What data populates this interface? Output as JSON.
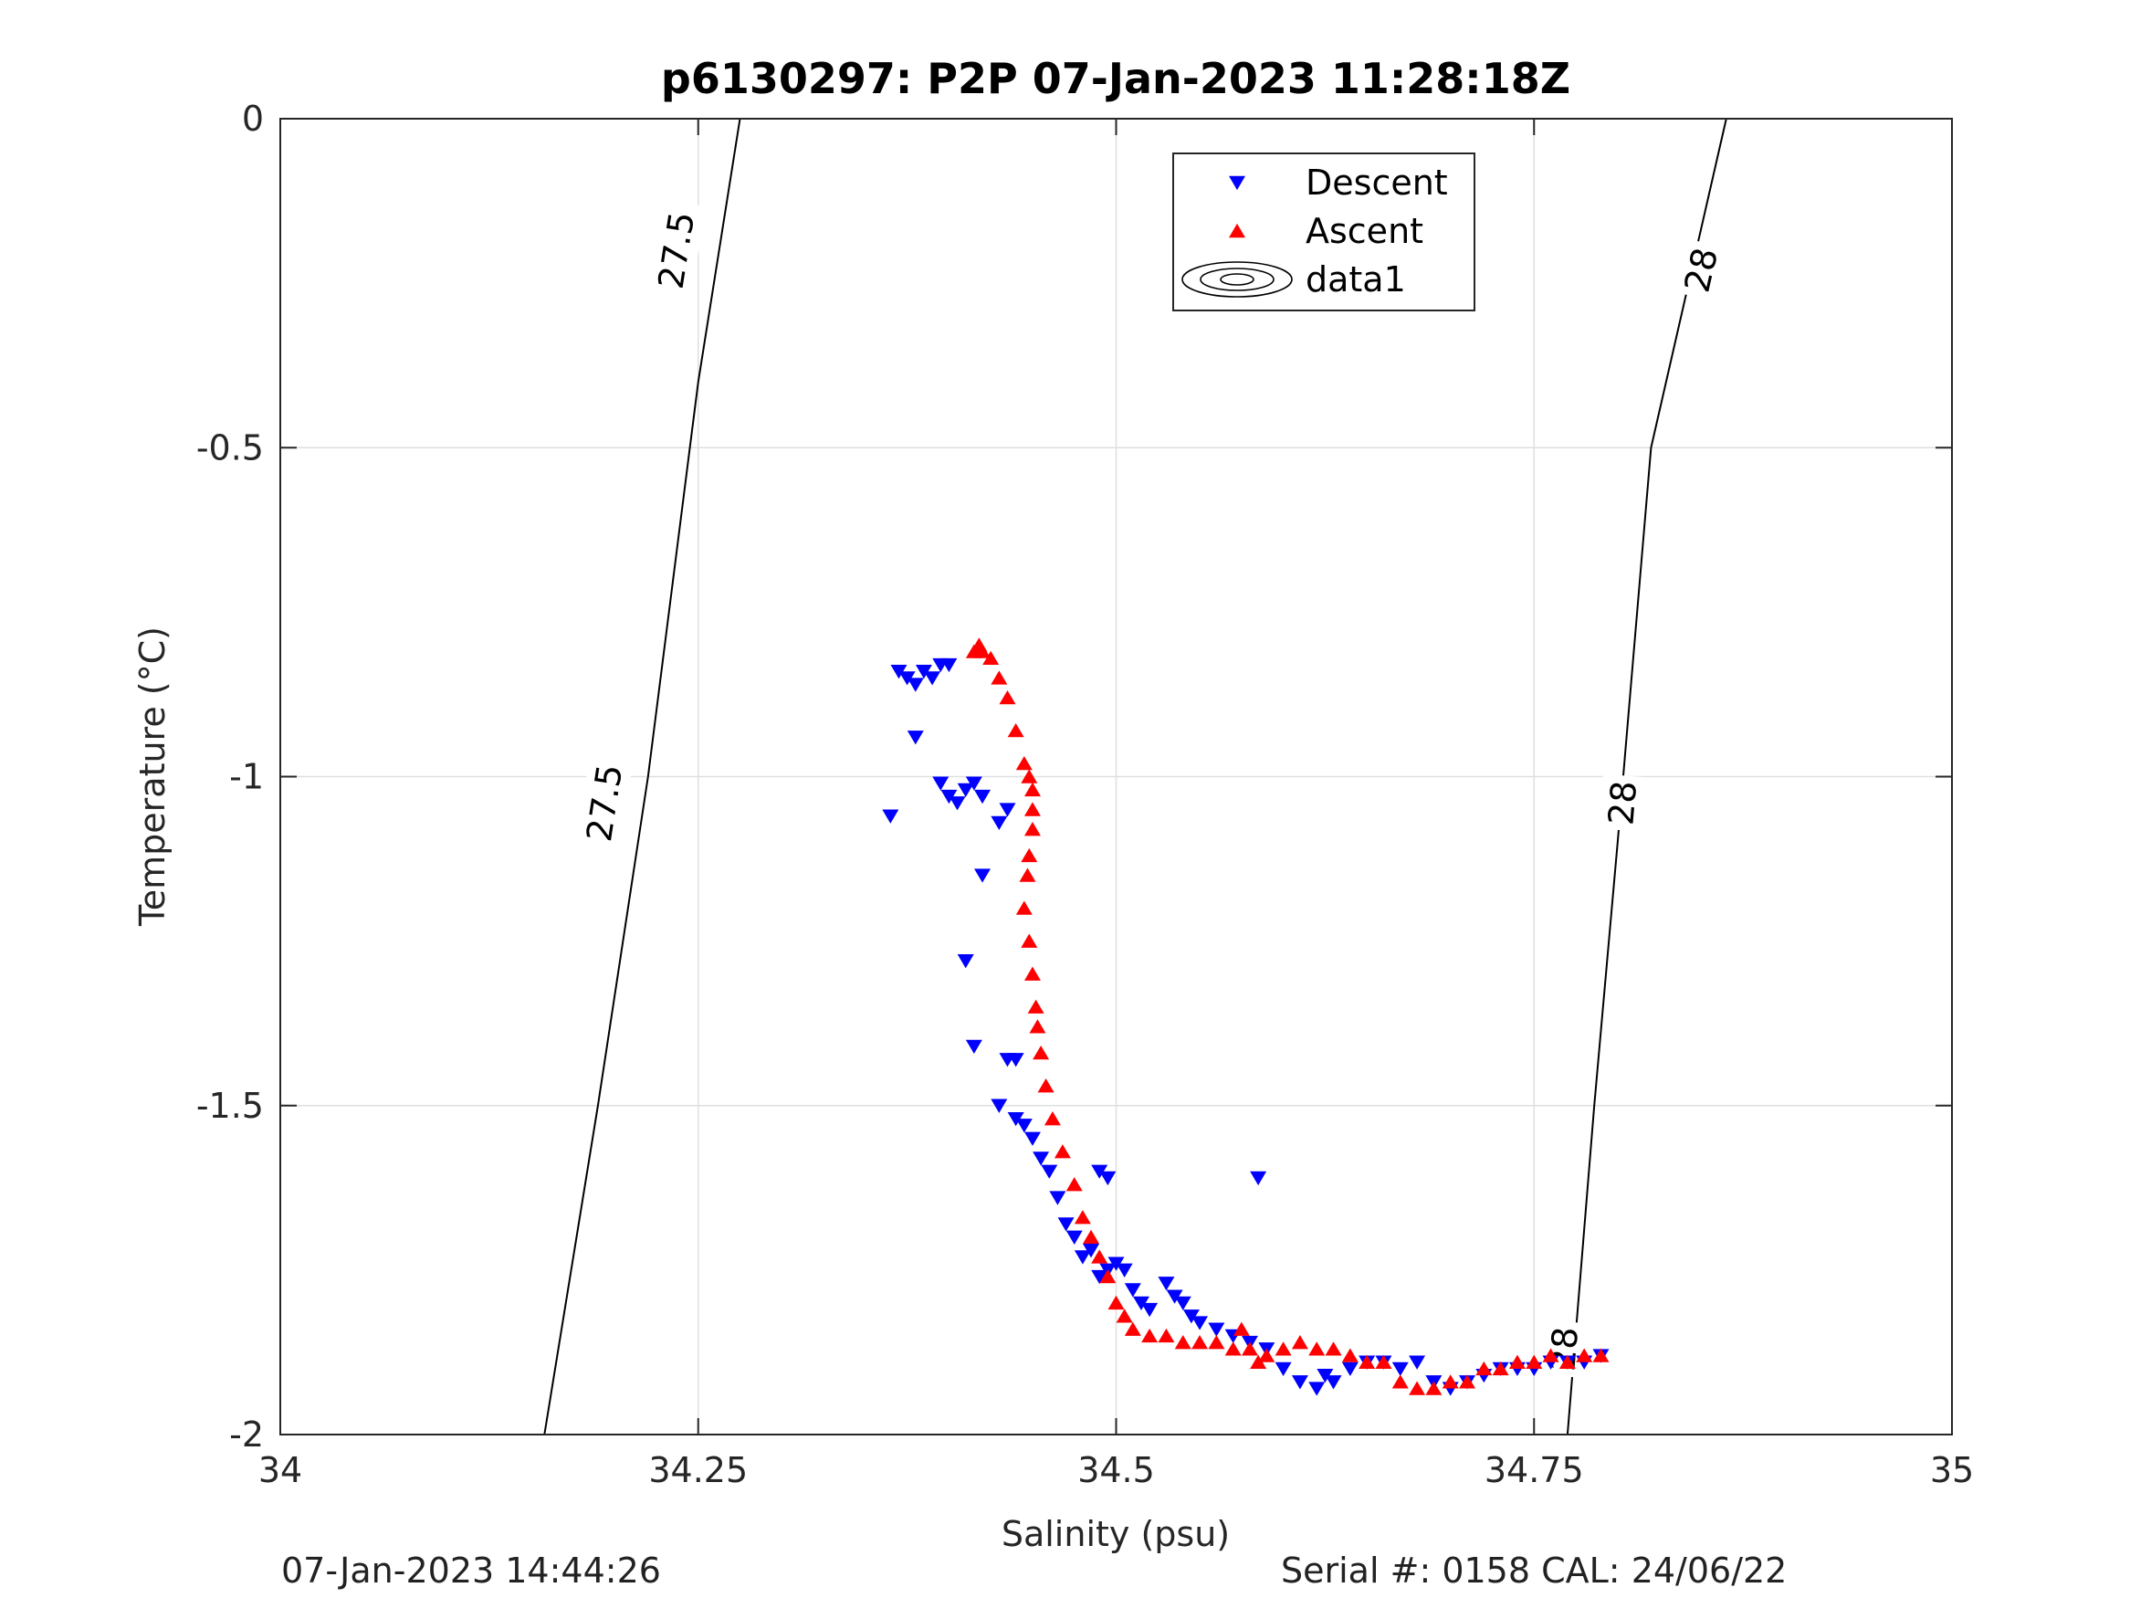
{
  "chart_data": {
    "type": "scatter",
    "title": "p6130297: P2P 07-Jan-2023 11:28:18Z",
    "xlabel": "Salinity (psu)",
    "ylabel": "Temperature (°C)",
    "xlim": [
      34,
      35
    ],
    "ylim": [
      -2,
      0
    ],
    "xticks": [
      34,
      34.25,
      34.5,
      34.75,
      35
    ],
    "xtick_labels": [
      "34",
      "34.25",
      "34.5",
      "34.75",
      "35"
    ],
    "yticks": [
      0,
      -0.5,
      -1,
      -1.5,
      -2
    ],
    "ytick_labels": [
      "0",
      "-0.5",
      "-1",
      "-1.5",
      "-2"
    ],
    "grid": true,
    "legend_position": "top-right",
    "legend": [
      {
        "label": "Descent",
        "marker": "triangle-down",
        "color": "#0000ff"
      },
      {
        "label": "Ascent",
        "marker": "triangle-up",
        "color": "#ff0000"
      },
      {
        "label": "data1",
        "marker": "contour",
        "color": "#000000"
      }
    ],
    "contours": [
      {
        "label": "27.5",
        "points": [
          [
            34.158,
            -2.0
          ],
          [
            34.19,
            -1.5
          ],
          [
            34.22,
            -1.0
          ],
          [
            34.245,
            -0.5
          ],
          [
            34.25,
            -0.4
          ],
          [
            34.275,
            0.0
          ]
        ],
        "label_positions": [
          [
            34.194,
            -1.04
          ],
          [
            34.237,
            -0.2
          ]
        ]
      },
      {
        "label": "28",
        "points": [
          [
            34.77,
            -2.0
          ],
          [
            34.786,
            -1.5
          ],
          [
            34.8,
            -1.1
          ],
          [
            34.82,
            -0.5
          ],
          [
            34.865,
            0.0
          ]
        ],
        "label_positions": [
          [
            34.768,
            -1.87
          ],
          [
            34.803,
            -1.04
          ],
          [
            34.85,
            -0.23
          ]
        ]
      }
    ],
    "series": [
      {
        "name": "Descent",
        "marker": "triangle-down",
        "color": "#0000ff",
        "points": [
          [
            34.365,
            -1.06
          ],
          [
            34.37,
            -0.84
          ],
          [
            34.375,
            -0.85
          ],
          [
            34.38,
            -0.86
          ],
          [
            34.385,
            -0.84
          ],
          [
            34.39,
            -0.85
          ],
          [
            34.395,
            -0.83
          ],
          [
            34.4,
            -0.83
          ],
          [
            34.38,
            -0.94
          ],
          [
            34.395,
            -1.01
          ],
          [
            34.4,
            -1.03
          ],
          [
            34.405,
            -1.04
          ],
          [
            34.41,
            -1.02
          ],
          [
            34.415,
            -1.01
          ],
          [
            34.42,
            -1.03
          ],
          [
            34.43,
            -1.07
          ],
          [
            34.435,
            -1.05
          ],
          [
            34.42,
            -1.15
          ],
          [
            34.41,
            -1.28
          ],
          [
            34.415,
            -1.41
          ],
          [
            34.435,
            -1.43
          ],
          [
            34.44,
            -1.43
          ],
          [
            34.43,
            -1.5
          ],
          [
            34.44,
            -1.52
          ],
          [
            34.445,
            -1.53
          ],
          [
            34.45,
            -1.55
          ],
          [
            34.455,
            -1.58
          ],
          [
            34.46,
            -1.6
          ],
          [
            34.465,
            -1.64
          ],
          [
            34.47,
            -1.68
          ],
          [
            34.475,
            -1.7
          ],
          [
            34.48,
            -1.73
          ],
          [
            34.485,
            -1.72
          ],
          [
            34.49,
            -1.76
          ],
          [
            34.495,
            -1.75
          ],
          [
            34.5,
            -1.74
          ],
          [
            34.505,
            -1.75
          ],
          [
            34.51,
            -1.78
          ],
          [
            34.515,
            -1.8
          ],
          [
            34.52,
            -1.81
          ],
          [
            34.53,
            -1.77
          ],
          [
            34.535,
            -1.79
          ],
          [
            34.54,
            -1.8
          ],
          [
            34.545,
            -1.82
          ],
          [
            34.55,
            -1.83
          ],
          [
            34.56,
            -1.84
          ],
          [
            34.57,
            -1.85
          ],
          [
            34.58,
            -1.86
          ],
          [
            34.59,
            -1.87
          ],
          [
            34.6,
            -1.9
          ],
          [
            34.61,
            -1.92
          ],
          [
            34.62,
            -1.93
          ],
          [
            34.625,
            -1.91
          ],
          [
            34.63,
            -1.92
          ],
          [
            34.64,
            -1.9
          ],
          [
            34.65,
            -1.89
          ],
          [
            34.66,
            -1.89
          ],
          [
            34.67,
            -1.9
          ],
          [
            34.68,
            -1.89
          ],
          [
            34.69,
            -1.92
          ],
          [
            34.7,
            -1.93
          ],
          [
            34.71,
            -1.92
          ],
          [
            34.72,
            -1.91
          ],
          [
            34.73,
            -1.9
          ],
          [
            34.74,
            -1.9
          ],
          [
            34.75,
            -1.9
          ],
          [
            34.76,
            -1.89
          ],
          [
            34.77,
            -1.89
          ],
          [
            34.78,
            -1.89
          ],
          [
            34.79,
            -1.88
          ],
          [
            34.49,
            -1.6
          ],
          [
            34.495,
            -1.61
          ],
          [
            34.585,
            -1.61
          ]
        ]
      },
      {
        "name": "Ascent",
        "marker": "triangle-up",
        "color": "#ff0000",
        "points": [
          [
            34.415,
            -0.81
          ],
          [
            34.418,
            -0.8
          ],
          [
            34.42,
            -0.81
          ],
          [
            34.425,
            -0.82
          ],
          [
            34.43,
            -0.85
          ],
          [
            34.435,
            -0.88
          ],
          [
            34.44,
            -0.93
          ],
          [
            34.445,
            -0.98
          ],
          [
            34.448,
            -1.0
          ],
          [
            34.45,
            -1.02
          ],
          [
            34.45,
            -1.05
          ],
          [
            34.45,
            -1.08
          ],
          [
            34.448,
            -1.12
          ],
          [
            34.447,
            -1.15
          ],
          [
            34.445,
            -1.2
          ],
          [
            34.448,
            -1.25
          ],
          [
            34.45,
            -1.3
          ],
          [
            34.452,
            -1.35
          ],
          [
            34.453,
            -1.38
          ],
          [
            34.455,
            -1.42
          ],
          [
            34.458,
            -1.47
          ],
          [
            34.462,
            -1.52
          ],
          [
            34.468,
            -1.57
          ],
          [
            34.475,
            -1.62
          ],
          [
            34.48,
            -1.67
          ],
          [
            34.485,
            -1.7
          ],
          [
            34.49,
            -1.73
          ],
          [
            34.495,
            -1.76
          ],
          [
            34.5,
            -1.8
          ],
          [
            34.505,
            -1.82
          ],
          [
            34.51,
            -1.84
          ],
          [
            34.52,
            -1.85
          ],
          [
            34.53,
            -1.85
          ],
          [
            34.54,
            -1.86
          ],
          [
            34.55,
            -1.86
          ],
          [
            34.56,
            -1.86
          ],
          [
            34.57,
            -1.87
          ],
          [
            34.575,
            -1.84
          ],
          [
            34.58,
            -1.87
          ],
          [
            34.585,
            -1.89
          ],
          [
            34.59,
            -1.88
          ],
          [
            34.6,
            -1.87
          ],
          [
            34.61,
            -1.86
          ],
          [
            34.62,
            -1.87
          ],
          [
            34.63,
            -1.87
          ],
          [
            34.64,
            -1.88
          ],
          [
            34.65,
            -1.89
          ],
          [
            34.66,
            -1.89
          ],
          [
            34.67,
            -1.92
          ],
          [
            34.68,
            -1.93
          ],
          [
            34.69,
            -1.93
          ],
          [
            34.7,
            -1.92
          ],
          [
            34.71,
            -1.92
          ],
          [
            34.72,
            -1.9
          ],
          [
            34.73,
            -1.9
          ],
          [
            34.74,
            -1.89
          ],
          [
            34.75,
            -1.89
          ],
          [
            34.76,
            -1.88
          ],
          [
            34.77,
            -1.89
          ],
          [
            34.78,
            -1.88
          ],
          [
            34.79,
            -1.88
          ]
        ]
      }
    ]
  },
  "footer": {
    "timestamp": "07-Jan-2023 14:44:26",
    "serial": "Serial #: 0158  CAL: 24/06/22"
  }
}
